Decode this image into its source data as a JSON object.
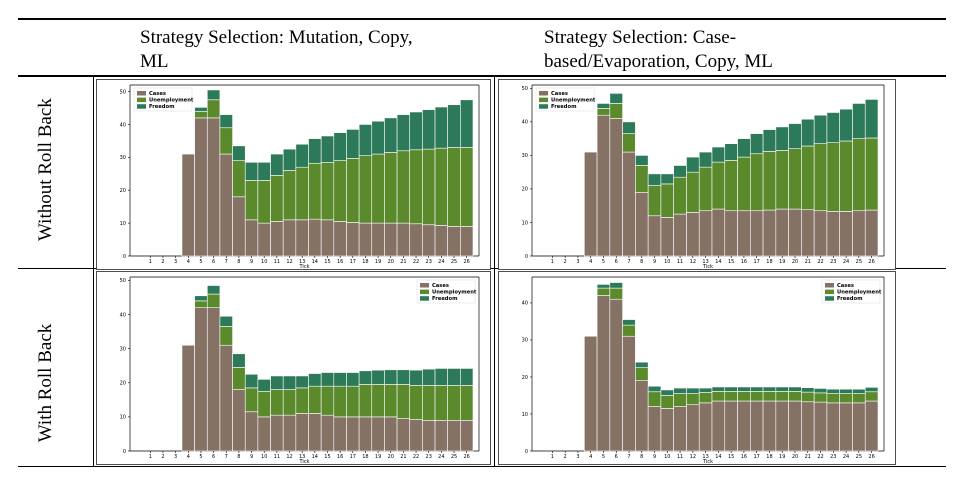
{
  "table": {
    "col_headers": [
      "Strategy Selection: Mutation, Copy,",
      "ML",
      "Strategy Selection: Case-",
      "based/Evaporation, Copy, ML"
    ],
    "row_labels": [
      "Without Roll Back",
      "With Roll Back"
    ]
  },
  "colors": {
    "Cases": "#857265",
    "Unemployment": "#5b8a2c",
    "Freedom": "#2d7a5b",
    "edge": "#ffffff"
  },
  "chart_data": [
    {
      "type": "bar",
      "stacked": true,
      "panel": "Without Roll Back / Mutation, Copy, ML",
      "xlabel": "Tick",
      "ylabel": "",
      "categories": [
        "1",
        "2",
        "3",
        "4",
        "5",
        "6",
        "7",
        "8",
        "9",
        "10",
        "11",
        "12",
        "13",
        "14",
        "15",
        "16",
        "17",
        "18",
        "19",
        "20",
        "21",
        "22",
        "23",
        "24",
        "25",
        "26"
      ],
      "ylim": [
        0,
        52
      ],
      "yticks": [
        0,
        10,
        20,
        30,
        40,
        50
      ],
      "legend": "top-left",
      "series": [
        {
          "name": "Cases",
          "values": [
            0,
            0,
            0,
            31,
            42,
            42,
            31,
            18,
            11,
            10,
            10.5,
            11,
            11,
            11.2,
            11,
            10.5,
            10.2,
            10,
            10,
            10,
            10,
            9.8,
            9.5,
            9.3,
            9,
            9
          ]
        },
        {
          "name": "Unemployment",
          "values": [
            0,
            0,
            0,
            0,
            2,
            5.5,
            8,
            11,
            12,
            13,
            14,
            15,
            16,
            17,
            17.5,
            18.5,
            19.5,
            20.5,
            21,
            21.5,
            22,
            22.5,
            23,
            23.5,
            24,
            24
          ]
        },
        {
          "name": "Freedom",
          "values": [
            0,
            0,
            0,
            0,
            1.2,
            3,
            4,
            4.5,
            5.5,
            5.5,
            6.5,
            6.5,
            7,
            7.5,
            8,
            8.5,
            8.8,
            9.5,
            10,
            10.5,
            11,
            11.5,
            12,
            12.5,
            13,
            14.5
          ]
        }
      ]
    },
    {
      "type": "bar",
      "stacked": true,
      "panel": "Without Roll Back / Case-based/Evaporation, Copy, ML",
      "xlabel": "Tick",
      "ylabel": "",
      "categories": [
        "1",
        "2",
        "3",
        "4",
        "5",
        "6",
        "7",
        "8",
        "9",
        "10",
        "11",
        "12",
        "13",
        "14",
        "15",
        "16",
        "17",
        "18",
        "19",
        "20",
        "21",
        "22",
        "23",
        "24",
        "25",
        "26"
      ],
      "ylim": [
        0,
        51
      ],
      "yticks": [
        0,
        10,
        20,
        30,
        40,
        50
      ],
      "legend": "top-left",
      "series": [
        {
          "name": "Cases",
          "values": [
            0,
            0,
            0,
            31,
            42,
            41,
            31,
            19,
            12,
            11.5,
            12.5,
            13,
            13.5,
            14,
            13.5,
            13.5,
            13.5,
            13.7,
            14,
            14,
            13.8,
            13.5,
            13.3,
            13.3,
            13.5,
            13.7
          ]
        },
        {
          "name": "Unemployment",
          "values": [
            0,
            0,
            0,
            0,
            2,
            4.5,
            5.5,
            8,
            9,
            10,
            11,
            12,
            13,
            14,
            15,
            16,
            17,
            17.5,
            17.5,
            18,
            19,
            20,
            20.5,
            21,
            21.5,
            21.5
          ]
        },
        {
          "name": "Freedom",
          "values": [
            0,
            0,
            0,
            0,
            1.5,
            3,
            3.5,
            3,
            3.5,
            3,
            3.5,
            4.5,
            4.5,
            4.5,
            5,
            5.5,
            6,
            6.5,
            7,
            7.5,
            8,
            8.5,
            9,
            9.5,
            10.5,
            11.5
          ]
        }
      ]
    },
    {
      "type": "bar",
      "stacked": true,
      "panel": "With Roll Back / Mutation, Copy, ML",
      "xlabel": "Tick",
      "ylabel": "",
      "categories": [
        "1",
        "2",
        "3",
        "4",
        "5",
        "6",
        "7",
        "8",
        "9",
        "10",
        "11",
        "12",
        "13",
        "14",
        "15",
        "16",
        "17",
        "18",
        "19",
        "20",
        "21",
        "22",
        "23",
        "24",
        "25",
        "26"
      ],
      "ylim": [
        0,
        51
      ],
      "yticks": [
        0,
        10,
        20,
        30,
        40,
        50
      ],
      "legend": "top-right",
      "series": [
        {
          "name": "Cases",
          "values": [
            0,
            0,
            0,
            31,
            42,
            42,
            31,
            18,
            11.5,
            10,
            10.5,
            10.5,
            11,
            11,
            10.5,
            10,
            10,
            10,
            10,
            10,
            9.5,
            9.2,
            9,
            9,
            9,
            9
          ]
        },
        {
          "name": "Unemployment",
          "values": [
            0,
            0,
            0,
            0,
            2,
            4,
            5.5,
            6.5,
            7,
            7.5,
            7.5,
            7.5,
            7.5,
            8,
            8.5,
            9,
            9,
            9.5,
            9.5,
            9.5,
            10,
            10,
            10.2,
            10.2,
            10.2,
            10.2
          ]
        },
        {
          "name": "Freedom",
          "values": [
            0,
            0,
            0,
            0,
            1.5,
            2.5,
            3,
            4,
            4,
            3.5,
            4,
            4,
            3.5,
            3.7,
            4,
            4,
            4,
            4,
            4.2,
            4.3,
            4.3,
            4.5,
            4.8,
            5,
            5,
            5
          ]
        }
      ]
    },
    {
      "type": "bar",
      "stacked": true,
      "panel": "With Roll Back / Case-based/Evaporation, Copy, ML",
      "xlabel": "Tick",
      "ylabel": "",
      "categories": [
        "1",
        "2",
        "3",
        "4",
        "5",
        "6",
        "7",
        "8",
        "9",
        "10",
        "11",
        "12",
        "13",
        "14",
        "15",
        "16",
        "17",
        "18",
        "19",
        "20",
        "21",
        "22",
        "23",
        "24",
        "25",
        "26"
      ],
      "ylim": [
        0,
        47
      ],
      "yticks": [
        0,
        10,
        20,
        30,
        40
      ],
      "legend": "top-right",
      "series": [
        {
          "name": "Cases",
          "values": [
            0,
            0,
            0,
            31,
            42,
            41,
            31,
            19,
            12,
            11.5,
            12,
            12.5,
            13,
            13.5,
            13.5,
            13.5,
            13.5,
            13.5,
            13.5,
            13.5,
            13.3,
            13.2,
            13,
            13,
            13,
            13.5
          ]
        },
        {
          "name": "Unemployment",
          "values": [
            0,
            0,
            0,
            0,
            2,
            3,
            3,
            3.5,
            4,
            3.5,
            3.5,
            3,
            2.8,
            2.6,
            2.6,
            2.6,
            2.6,
            2.6,
            2.6,
            2.6,
            2.6,
            2.5,
            2.5,
            2.5,
            2.5,
            2.5
          ]
        },
        {
          "name": "Freedom",
          "values": [
            0,
            0,
            0,
            0,
            1,
            1.5,
            1.5,
            1.5,
            1.5,
            1.5,
            1.5,
            1.5,
            1.2,
            1.2,
            1.2,
            1.2,
            1.2,
            1.2,
            1.2,
            1.2,
            1.2,
            1.2,
            1.2,
            1.2,
            1.2,
            1.2
          ]
        }
      ]
    }
  ]
}
